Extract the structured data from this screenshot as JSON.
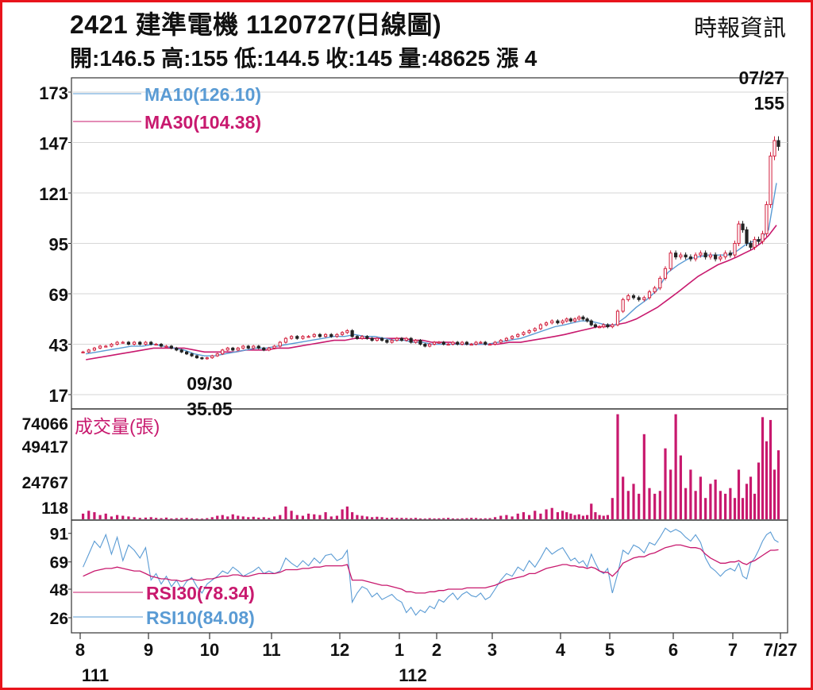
{
  "header": {
    "title": "2421  建準電機 1120727(日線圖)",
    "source": "時報資訊",
    "ohlc": "開:146.5 高:155 低:144.5 收:145 量:48625 漲 4"
  },
  "chart_data": {
    "type": "candlestick",
    "price_panel": {
      "y_ticks": [
        173,
        147,
        121,
        95,
        69,
        43,
        17
      ],
      "ylim": [
        17,
        173
      ],
      "legend": [
        {
          "label": "MA10(126.10)",
          "color": "#5a9bd4"
        },
        {
          "label": "MA30(104.38)",
          "color": "#c8196e"
        }
      ],
      "annotations": [
        {
          "text": "07/27",
          "date": "2023-07-27"
        },
        {
          "text": "155",
          "date": "2023-07-27",
          "value": 155
        },
        {
          "text": "09/30",
          "date": "2022-09-30"
        },
        {
          "text": "35.05",
          "date": "2022-09-30",
          "value": 35.05
        }
      ],
      "close_series": [
        {
          "month": "2022-08",
          "values": [
            39,
            40,
            41,
            42,
            42,
            43,
            44,
            44,
            43,
            44,
            43,
            44
          ]
        },
        {
          "month": "2022-09",
          "values": [
            43,
            43,
            42,
            42,
            41,
            40,
            39,
            38,
            37,
            36,
            35.5,
            36
          ]
        },
        {
          "month": "2022-10",
          "values": [
            37,
            38,
            40,
            41,
            40,
            41,
            42,
            41,
            42,
            41,
            40,
            41
          ]
        },
        {
          "month": "2022-11",
          "values": [
            42,
            44,
            46,
            47,
            46,
            47,
            47,
            48,
            47,
            48,
            47,
            48
          ]
        },
        {
          "month": "2022-12",
          "values": [
            49,
            50,
            47,
            46,
            47,
            46,
            45,
            46,
            45,
            44,
            45,
            46
          ]
        },
        {
          "month": "2023-01",
          "values": [
            45,
            46,
            44,
            45,
            43,
            42,
            43,
            44
          ]
        },
        {
          "month": "2023-02",
          "values": [
            44,
            43,
            43,
            44,
            43,
            44,
            43,
            43,
            44,
            44,
            43,
            43
          ]
        },
        {
          "month": "2023-03",
          "values": [
            44,
            45,
            46,
            47,
            48,
            49,
            50,
            51,
            53,
            54,
            55,
            54
          ]
        },
        {
          "month": "2023-04",
          "values": [
            55,
            56,
            55,
            56,
            57,
            56,
            55,
            53,
            52,
            52,
            53,
            52
          ]
        },
        {
          "month": "2023-05",
          "values": [
            53,
            60,
            66,
            68,
            67,
            66,
            67,
            70,
            72,
            77,
            82,
            90
          ]
        },
        {
          "month": "2023-06",
          "values": [
            88,
            89,
            88,
            87,
            89,
            90,
            88,
            89,
            87,
            88,
            90,
            89
          ]
        },
        {
          "month": "2023-07",
          "values": [
            95,
            105,
            102,
            95,
            93,
            97,
            96,
            100,
            115,
            140,
            148,
            145
          ]
        }
      ],
      "ma10_series": [
        {
          "month": "2022-08",
          "values": [
            38,
            39,
            40,
            41,
            42,
            42
          ]
        },
        {
          "month": "2022-09",
          "values": [
            43,
            42,
            41,
            40,
            38,
            37
          ]
        },
        {
          "month": "2022-10",
          "values": [
            37,
            38,
            39,
            40,
            41,
            41
          ]
        },
        {
          "month": "2022-11",
          "values": [
            42,
            43,
            44,
            45,
            46,
            47
          ]
        },
        {
          "month": "2022-12",
          "values": [
            47,
            48,
            47,
            47,
            46,
            45
          ]
        },
        {
          "month": "2023-01",
          "values": [
            45,
            44,
            44,
            43
          ]
        },
        {
          "month": "2023-02",
          "values": [
            43,
            43,
            43,
            43,
            43,
            43
          ]
        },
        {
          "month": "2023-03",
          "values": [
            44,
            45,
            46,
            48,
            50,
            52
          ]
        },
        {
          "month": "2023-04",
          "values": [
            53,
            54,
            55,
            55,
            54,
            53
          ]
        },
        {
          "month": "2023-05",
          "values": [
            53,
            57,
            62,
            66,
            71,
            80
          ]
        },
        {
          "month": "2023-06",
          "values": [
            84,
            87,
            88,
            89,
            89,
            89
          ]
        },
        {
          "month": "2023-07",
          "values": [
            91,
            94,
            96,
            97,
            102,
            126.1
          ]
        }
      ],
      "ma30_series": [
        {
          "month": "2022-08",
          "values": [
            35,
            36,
            37,
            38,
            39,
            40
          ]
        },
        {
          "month": "2022-09",
          "values": [
            41,
            41,
            41,
            41,
            40,
            39
          ]
        },
        {
          "month": "2022-10",
          "values": [
            39,
            39,
            39,
            40,
            40,
            40
          ]
        },
        {
          "month": "2022-11",
          "values": [
            41,
            41,
            42,
            43,
            44,
            45
          ]
        },
        {
          "month": "2022-12",
          "values": [
            45,
            46,
            46,
            46,
            46,
            46
          ]
        },
        {
          "month": "2023-01",
          "values": [
            46,
            45,
            45,
            44
          ]
        },
        {
          "month": "2023-02",
          "values": [
            44,
            44,
            43,
            43,
            43,
            43
          ]
        },
        {
          "month": "2023-03",
          "values": [
            43,
            44,
            44,
            45,
            46,
            47
          ]
        },
        {
          "month": "2023-04",
          "values": [
            48,
            49,
            50,
            51,
            52,
            52
          ]
        },
        {
          "month": "2023-05",
          "values": [
            53,
            54,
            56,
            59,
            62,
            66
          ]
        },
        {
          "month": "2023-06",
          "values": [
            70,
            74,
            78,
            81,
            84,
            86
          ]
        },
        {
          "month": "2023-07",
          "values": [
            88,
            90,
            92,
            95,
            99,
            104.38
          ]
        }
      ]
    },
    "volume_panel": {
      "label": "成交量(張)",
      "y_ticks": [
        74066,
        49417,
        24767,
        118
      ],
      "ylim": [
        0,
        75000
      ],
      "color": "#c8196e",
      "series": [
        {
          "month": "2022-08",
          "values": [
            4000,
            6000,
            5000,
            3000,
            4000,
            2000,
            3000,
            2500,
            2000,
            1500,
            1000,
            1200
          ]
        },
        {
          "month": "2022-09",
          "values": [
            1500,
            1000,
            800,
            1200,
            600,
            800,
            900,
            1000,
            700,
            600,
            500,
            800
          ]
        },
        {
          "month": "2022-10",
          "values": [
            1500,
            2500,
            3000,
            2000,
            3500,
            2500,
            2000,
            1500,
            1800,
            1200,
            1500,
            1000
          ]
        },
        {
          "month": "2022-11",
          "values": [
            2000,
            3000,
            9000,
            6000,
            3000,
            2500,
            4000,
            3500,
            3000,
            5000,
            2000,
            2500
          ]
        },
        {
          "month": "2022-12",
          "values": [
            7000,
            9000,
            5000,
            3000,
            2500,
            2000,
            1500,
            1800,
            1500,
            1000,
            1200,
            1000
          ]
        },
        {
          "month": "2023-01",
          "values": [
            1000,
            900,
            800,
            1000,
            600,
            500,
            800,
            600
          ]
        },
        {
          "month": "2023-02",
          "values": [
            700,
            800,
            1000,
            600,
            500,
            700,
            800,
            1000,
            900,
            600,
            700,
            800
          ]
        },
        {
          "month": "2023-03",
          "values": [
            1500,
            2500,
            3000,
            2000,
            4000,
            5000,
            3000,
            6000,
            4000,
            7000,
            8000,
            5000
          ]
        },
        {
          "month": "2023-04",
          "values": [
            6000,
            5000,
            4000,
            3000,
            3500,
            2500,
            3000,
            11000,
            5000,
            3000,
            2500,
            3000
          ]
        },
        {
          "month": "2023-05",
          "values": [
            15000,
            74066,
            30000,
            20000,
            25000,
            18000,
            60000,
            22000,
            18000,
            20000,
            50000,
            35000
          ]
        },
        {
          "month": "2023-06",
          "values": [
            74066,
            45000,
            22000,
            35000,
            20000,
            30000,
            15000,
            25000,
            28000,
            20000,
            18000,
            22000
          ]
        },
        {
          "month": "2023-07",
          "values": [
            15000,
            35000,
            15000,
            25000,
            30000,
            18000,
            40000,
            72000,
            55000,
            70000,
            35000,
            48625
          ]
        }
      ]
    },
    "rsi_panel": {
      "y_ticks": [
        91,
        69,
        48,
        26
      ],
      "ylim": [
        15,
        100
      ],
      "legend": [
        {
          "label": "RSI30(78.34)",
          "color": "#c8196e"
        },
        {
          "label": "RSI10(84.08)",
          "color": "#5a9bd4"
        }
      ],
      "rsi10_series": [
        {
          "month": "2022-08",
          "values": [
            65,
            75,
            85,
            80,
            90,
            75,
            88,
            70,
            82,
            78,
            72,
            80
          ]
        },
        {
          "month": "2022-09",
          "values": [
            55,
            60,
            52,
            58,
            50,
            55,
            48,
            54,
            57,
            50,
            45,
            52
          ]
        },
        {
          "month": "2022-10",
          "values": [
            55,
            58,
            62,
            60,
            65,
            62,
            58,
            60,
            62,
            65,
            60,
            62
          ]
        },
        {
          "month": "2022-11",
          "values": [
            60,
            62,
            72,
            68,
            65,
            70,
            66,
            72,
            68,
            74,
            75,
            70
          ]
        },
        {
          "month": "2022-12",
          "values": [
            72,
            78,
            38,
            45,
            50,
            48,
            42,
            45,
            40,
            42,
            44,
            40
          ]
        },
        {
          "month": "2023-01",
          "values": [
            38,
            30,
            34,
            28,
            32,
            30,
            35,
            33
          ]
        },
        {
          "month": "2023-02",
          "values": [
            40,
            38,
            42,
            45,
            40,
            44,
            46,
            43,
            42,
            45,
            40,
            42
          ]
        },
        {
          "month": "2023-03",
          "values": [
            48,
            55,
            60,
            58,
            65,
            62,
            70,
            65,
            72,
            80,
            75,
            78
          ]
        },
        {
          "month": "2023-04",
          "values": [
            80,
            75,
            70,
            72,
            68,
            70,
            65,
            75,
            68,
            62,
            60,
            64
          ]
        },
        {
          "month": "2023-05",
          "values": [
            45,
            60,
            78,
            75,
            82,
            80,
            76,
            84,
            82,
            88,
            95,
            92
          ]
        },
        {
          "month": "2023-06",
          "values": [
            94,
            92,
            88,
            85,
            90,
            84,
            72,
            65,
            62,
            58,
            62,
            64
          ]
        },
        {
          "month": "2023-07",
          "values": [
            62,
            68,
            58,
            56,
            68,
            72,
            78,
            85,
            90,
            92,
            86,
            84.08
          ]
        }
      ],
      "rsi30_series": [
        {
          "month": "2022-08",
          "values": [
            58,
            60,
            62,
            63,
            64,
            64,
            65,
            64,
            63,
            62,
            62,
            60
          ]
        },
        {
          "month": "2022-09",
          "values": [
            58,
            57,
            56,
            56,
            55,
            55,
            54,
            55,
            56,
            55,
            55,
            56
          ]
        },
        {
          "month": "2022-10",
          "values": [
            56,
            57,
            58,
            58,
            59,
            59,
            58,
            58,
            59,
            60,
            60,
            60
          ]
        },
        {
          "month": "2022-11",
          "values": [
            60,
            61,
            63,
            63,
            63,
            64,
            64,
            65,
            65,
            66,
            66,
            66
          ]
        },
        {
          "month": "2022-12",
          "values": [
            66,
            67,
            55,
            55,
            55,
            54,
            53,
            52,
            51,
            51,
            50,
            49
          ]
        },
        {
          "month": "2023-01",
          "values": [
            48,
            46,
            46,
            45,
            45,
            45,
            46,
            46
          ]
        },
        {
          "month": "2023-02",
          "values": [
            47,
            47,
            48,
            48,
            48,
            48,
            49,
            49,
            49,
            49,
            49,
            50
          ]
        },
        {
          "month": "2023-03",
          "values": [
            51,
            53,
            55,
            56,
            57,
            58,
            60,
            60,
            62,
            64,
            65,
            66
          ]
        },
        {
          "month": "2023-04",
          "values": [
            67,
            67,
            66,
            66,
            65,
            65,
            64,
            65,
            64,
            62,
            61,
            61
          ]
        },
        {
          "month": "2023-05",
          "values": [
            58,
            62,
            68,
            70,
            72,
            73,
            73,
            75,
            76,
            78,
            80,
            81
          ]
        },
        {
          "month": "2023-06",
          "values": [
            82,
            82,
            81,
            80,
            80,
            79,
            75,
            72,
            70,
            68,
            68,
            69
          ]
        },
        {
          "month": "2023-07",
          "values": [
            69,
            70,
            68,
            67,
            69,
            70,
            72,
            74,
            76,
            78,
            78,
            78.34
          ]
        }
      ]
    },
    "x_axis": {
      "months": [
        "8",
        "9",
        "10",
        "11",
        "12",
        "1",
        "2",
        "3",
        "4",
        "5",
        "6",
        "7",
        "7/27"
      ],
      "years": [
        "111",
        "112"
      ]
    }
  }
}
